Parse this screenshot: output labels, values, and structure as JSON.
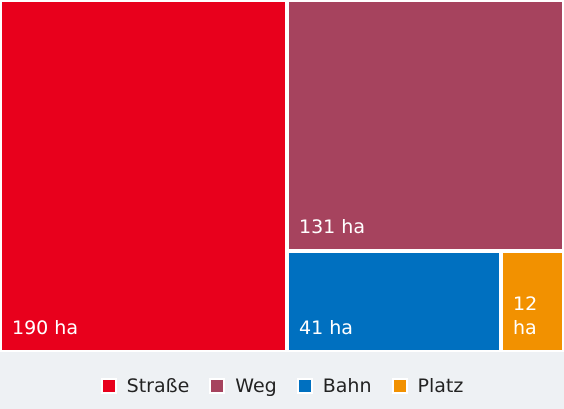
{
  "chart_data": {
    "type": "treemap",
    "title": "",
    "unit": "ha",
    "categories": [
      "Straße",
      "Weg",
      "Bahn",
      "Platz"
    ],
    "values": [
      190,
      131,
      41,
      12
    ],
    "labels": [
      "190 ha",
      "131 ha",
      "41 ha",
      "12 ha"
    ],
    "colors": [
      "#e8001c",
      "#a6435e",
      "#0070c0",
      "#f29100"
    ],
    "legend_position": "bottom-center"
  }
}
